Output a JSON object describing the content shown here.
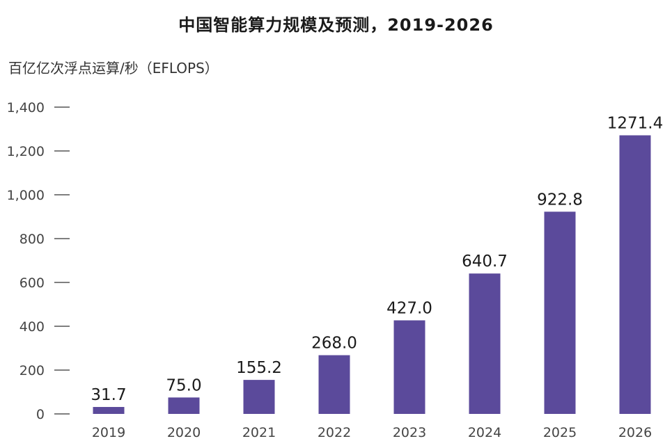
{
  "chart_data": {
    "type": "bar",
    "title": "中国智能算力规模及预测，2019-2026",
    "ylabel": "百亿亿次浮点运算/秒（EFLOPS）",
    "xlabel": "",
    "categories": [
      "2019",
      "2020",
      "2021",
      "2022",
      "2023",
      "2024",
      "2025",
      "2026"
    ],
    "values": [
      31.7,
      75.0,
      155.2,
      268.0,
      427.0,
      640.7,
      922.8,
      1271.4
    ],
    "value_labels": [
      "31.7",
      "75.0",
      "155.2",
      "268.0",
      "427.0",
      "640.7",
      "922.8",
      "1271.4"
    ],
    "ylim": [
      0,
      1400
    ],
    "yticks": [
      0,
      200,
      400,
      600,
      800,
      1000,
      1200,
      1400
    ],
    "ytick_labels": [
      "0",
      "200",
      "400",
      "600",
      "800",
      "1,000",
      "1,200",
      "1,400"
    ],
    "grid": false,
    "bar_color": "#5b4a9b"
  }
}
